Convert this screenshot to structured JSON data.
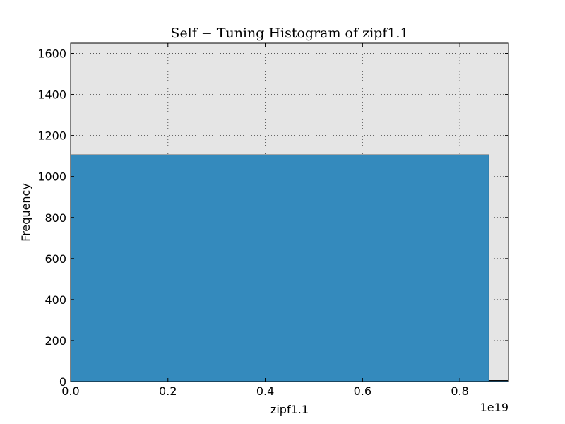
{
  "chart_data": {
    "type": "bar",
    "title": "Self − Tuning Histogram of zipf1.1",
    "xlabel": "zipf1.1",
    "ylabel": "Frequency",
    "x_offset_text": "1e19",
    "xlim": [
      0.0,
      0.9
    ],
    "ylim": [
      0,
      1650
    ],
    "x_ticks": [
      0.0,
      0.2,
      0.4,
      0.6,
      0.8
    ],
    "x_tick_labels": [
      "0.0",
      "0.2",
      "0.4",
      "0.6",
      "0.8"
    ],
    "y_ticks": [
      0,
      200,
      400,
      600,
      800,
      1000,
      1200,
      1400,
      1600
    ],
    "y_tick_labels": [
      "0",
      "200",
      "400",
      "600",
      "800",
      "1000",
      "1200",
      "1400",
      "1600"
    ],
    "grid": true,
    "bins": [
      {
        "x_start": 0.0,
        "x_end": 0.86,
        "value": 1105
      },
      {
        "x_start": 0.86,
        "x_end": 0.9,
        "value": 5
      }
    ],
    "colors": {
      "bar_fill": "#348ABD",
      "plot_background": "#E5E5E5",
      "grid": "#555555"
    }
  }
}
